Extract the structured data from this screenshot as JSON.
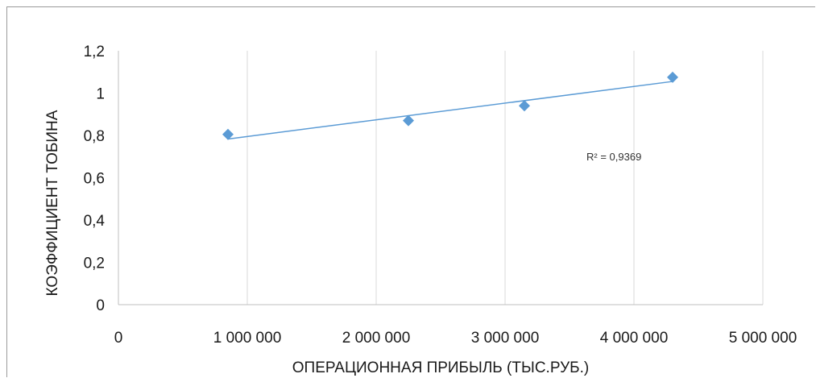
{
  "chart_data": {
    "type": "scatter",
    "title": "",
    "xlabel": "ОПЕРАЦИОННАЯ ПРИБЫЛЬ (ТЫС.РУБ.)",
    "ylabel": "КОЭФФИЦИЕНТ ТОБИНА",
    "xlim": [
      0,
      5000000
    ],
    "ylim": [
      0,
      1.2
    ],
    "x_ticks": [
      0,
      1000000,
      2000000,
      3000000,
      4000000,
      5000000
    ],
    "x_tick_labels": [
      "0",
      "1 000 000",
      "2 000 000",
      "3 000 000",
      "4 000 000",
      "5 000 000"
    ],
    "y_ticks": [
      0,
      0.2,
      0.4,
      0.6,
      0.8,
      1,
      1.2
    ],
    "y_tick_labels": [
      "0",
      "0,2",
      "0,4",
      "0,6",
      "0,8",
      "1",
      "1,2"
    ],
    "grid": "vertical",
    "marker": "diamond",
    "series": [
      {
        "x": [
          850000,
          2250000,
          3150000,
          4300000
        ],
        "y": [
          0.805,
          0.87,
          0.94,
          1.075
        ]
      }
    ],
    "trendline": {
      "type": "linear",
      "x": [
        850000,
        4300000
      ],
      "y": [
        0.783,
        1.055
      ],
      "label": "R² = 0,9369"
    },
    "colors": {
      "marker": "#5b9bd5",
      "trendline": "#5b9bd5",
      "gridline": "#d9d9d9",
      "axis": "#bfbfbf"
    }
  }
}
